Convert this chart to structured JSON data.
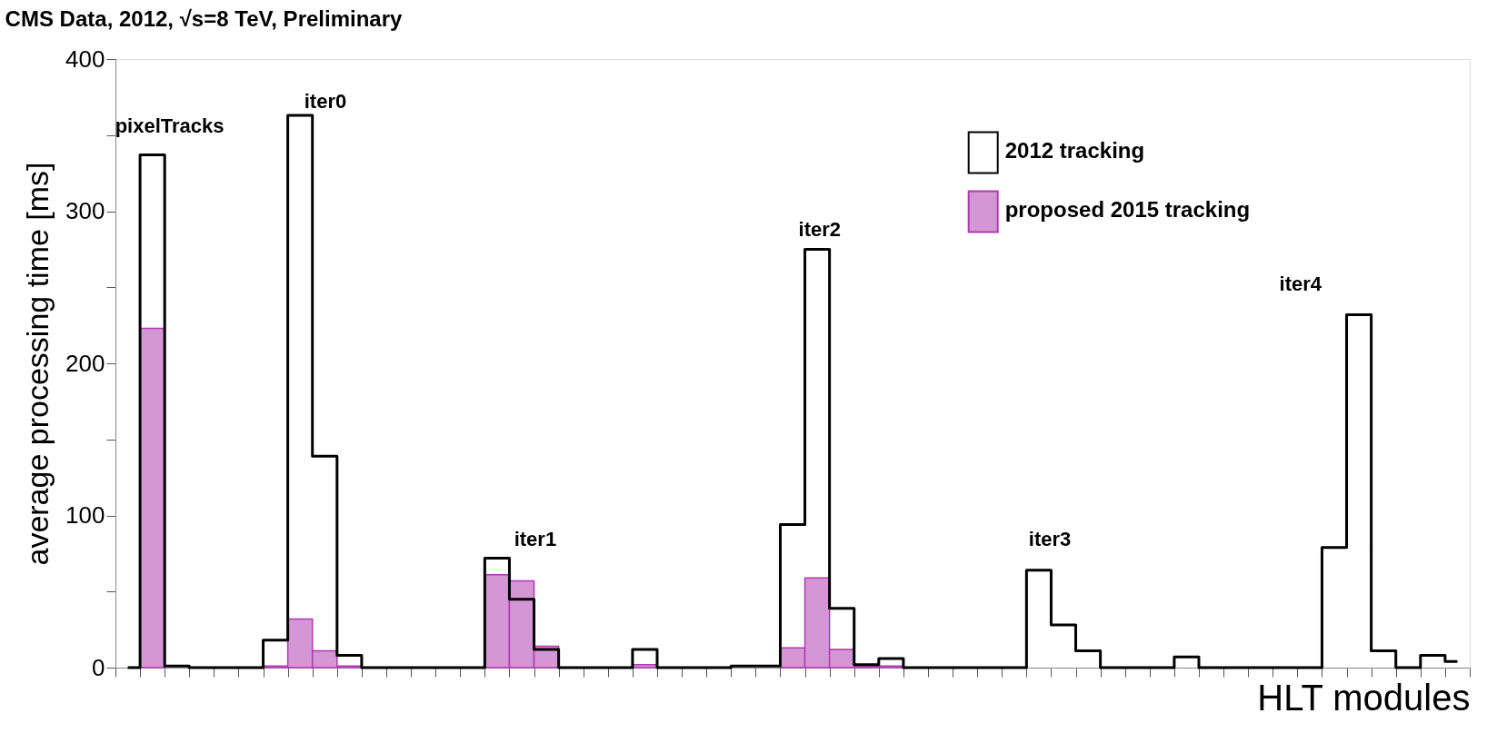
{
  "chart_data": {
    "type": "bar",
    "title": "CMS Data, 2012,  √s=8 TeV, Preliminary",
    "xlabel": "HLT modules",
    "ylabel": "average processing time [ms]",
    "categories": [
      null,
      null,
      null,
      null,
      null,
      null,
      null,
      null,
      null,
      null,
      null,
      null,
      null,
      null,
      null,
      null,
      null,
      null,
      null,
      null,
      null,
      null,
      null,
      null,
      null,
      null,
      null,
      null,
      null,
      null,
      null,
      null,
      null,
      null,
      null,
      null,
      null,
      null,
      null,
      null,
      null,
      null,
      null,
      null,
      null,
      null,
      null,
      null,
      null,
      null,
      null,
      null,
      null,
      null,
      null
    ],
    "series": [
      {
        "name": "2012 tracking",
        "type": "step",
        "color": "#000000",
        "values": [
          0,
          337,
          1,
          0,
          0,
          0,
          18,
          363,
          139,
          8,
          0,
          0,
          0,
          0,
          0,
          72,
          45,
          12,
          0,
          0,
          0,
          12,
          0,
          0,
          0,
          1,
          1,
          94,
          275,
          39,
          2,
          6,
          0,
          0,
          0,
          0,
          0,
          64,
          28,
          11,
          0,
          0,
          0,
          7,
          0,
          0,
          0,
          0,
          0,
          79,
          232,
          11,
          0,
          8,
          4
        ]
      },
      {
        "name": "proposed 2015 tracking",
        "type": "bar",
        "color": "#d496d4",
        "values": [
          0,
          223,
          0,
          0,
          0,
          0,
          1,
          32,
          11,
          1,
          0,
          0,
          0,
          0,
          0,
          61,
          57,
          14,
          0,
          0,
          0,
          2,
          0,
          0,
          0,
          0,
          0,
          13,
          59,
          12,
          1,
          1,
          0,
          0,
          0,
          0,
          0,
          0,
          0,
          0,
          0,
          0,
          0,
          0,
          0,
          0,
          0,
          0,
          0,
          0,
          0,
          0,
          0,
          0,
          0
        ]
      }
    ],
    "ylim": [
      0,
      400
    ],
    "yticks": [
      0,
      {
        "value": 50,
        "label": null
      },
      100,
      {
        "value": 150,
        "label": null
      },
      200,
      {
        "value": 250,
        "label": null
      },
      300,
      {
        "value": 350,
        "label": null
      },
      400
    ],
    "tick_labels": "y",
    "grid": false,
    "legend": "top right",
    "annotations": [
      "pixelTracks",
      "iter0",
      "iter1",
      "iter2",
      "iter3",
      "iter4"
    ]
  }
}
